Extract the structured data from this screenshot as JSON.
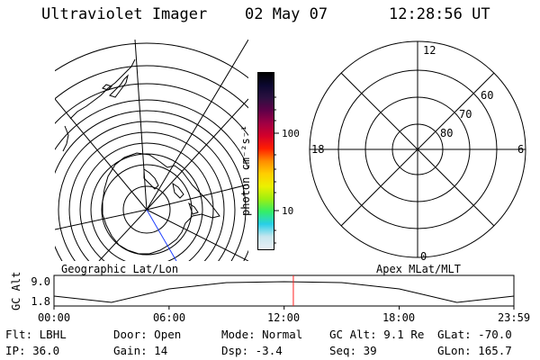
{
  "header": {
    "instrument": "Ultraviolet Imager",
    "date": "02 May 07",
    "time": "12:28:56 UT"
  },
  "colorbar": {
    "unit_label": "photon cm⁻²s⁻¹",
    "tick_100": "100",
    "tick_10": "10",
    "colors": [
      "#e8eef4",
      "#c8e6ee",
      "#28cfe8",
      "#34ee66",
      "#9eef10",
      "#ecf000",
      "#ffce00",
      "#ff8c00",
      "#ff1e00",
      "#d4002a",
      "#a00044",
      "#600048",
      "#2c1040",
      "#0c0830",
      "#000000"
    ]
  },
  "map_panels": {
    "geographic_label": "Geographic Lat/Lon",
    "apex_label": "Apex MLat/MLT",
    "polar_mlt_labels": {
      "top": "12",
      "left": "18",
      "right": "6",
      "bottom": "0"
    },
    "polar_lat_labels": [
      "60",
      "70",
      "80"
    ]
  },
  "altitude_plot": {
    "ylabel": "GC Alt",
    "yticks": [
      "9.0",
      "1.8"
    ],
    "xticks": [
      "00:00",
      "06:00",
      "12:00",
      "18:00",
      "23:59"
    ],
    "marker_color": "#ff2020"
  },
  "chart_data": {
    "type": "line",
    "x": [
      0,
      3,
      6,
      9,
      12,
      15,
      18,
      21,
      23.98
    ],
    "series": [
      {
        "values": [
          4.0,
          1.8,
          6.5,
          8.7,
          9.0,
          8.7,
          6.5,
          1.8,
          4.0
        ]
      }
    ],
    "xlabel": "",
    "ylabel": "GC Alt",
    "ylim": [
      1.8,
      9.0
    ],
    "xlim": [
      0,
      23.98
    ],
    "marker_x": 12.48
  },
  "footer": {
    "row1": [
      {
        "label": "Flt:",
        "value": "LBHL"
      },
      {
        "label": "Door:",
        "value": "Open"
      },
      {
        "label": "Mode:",
        "value": "Normal"
      },
      {
        "label": "GC Alt:",
        "value": "9.1 Re"
      },
      {
        "label": "GLat:",
        "value": "-70.0"
      }
    ],
    "row2": [
      {
        "label": "IP:",
        "value": "36.0"
      },
      {
        "label": "Gain:",
        "value": "14"
      },
      {
        "label": "Dsp:",
        "value": "-3.4"
      },
      {
        "label": "Seq:",
        "value": "39"
      },
      {
        "label": "GLon:",
        "value": "165.7"
      }
    ]
  }
}
